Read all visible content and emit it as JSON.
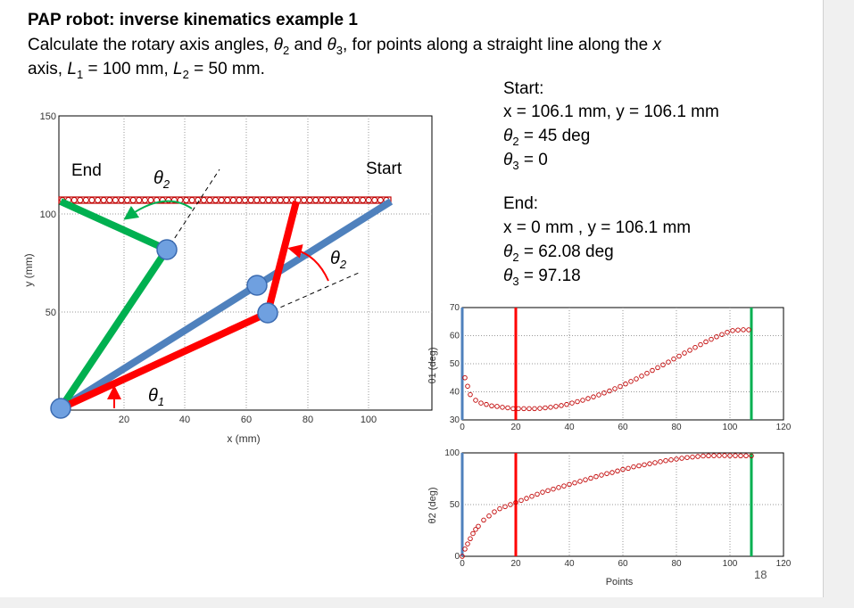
{
  "slide": {
    "title": "PAP robot: inverse kinematics example 1",
    "line1_a": "Calculate the rotary axis angles, ",
    "theta2": "θ",
    "sub2": "2",
    "and": " and ",
    "theta3": "θ",
    "sub3": "3",
    "line1_b": ", for points along a straight line along the ",
    "x_var": "x",
    "line2_a": "axis, ",
    "L": "L",
    "sub1": "1",
    "line2_b": " = 100 mm, ",
    "L2": "L",
    "subL2": "2",
    "line2_c": " = 50 mm.",
    "slide_number": "18"
  },
  "start_info": {
    "heading": "Start:",
    "xy": "x = 106.1 mm, y = 106.1 mm",
    "theta2": "= 45 deg",
    "theta3": "= 0"
  },
  "end_info": {
    "heading": "End:",
    "xy": "x = 0 mm , y = 106.1 mm",
    "theta2": "= 62.08 deg",
    "theta3": "= 97.18"
  },
  "robot_plot": {
    "xlabel": "x (mm)",
    "ylabel": "y (mm)",
    "xticks": [
      "20",
      "40",
      "60",
      "80",
      "100"
    ],
    "yticks": [
      "150",
      "100",
      "50"
    ],
    "label_end": "End",
    "label_start": "Start",
    "label_theta2_top": "θ2",
    "label_theta2_right": "θ2",
    "label_theta1": "θ1",
    "colors": {
      "green": "#00b050",
      "blue": "#4f81bd",
      "red": "#ff0000",
      "marker": "#c00000"
    }
  },
  "chart_data": [
    {
      "type": "scatter",
      "ylabel": "θ1 (deg)",
      "xlabel": "",
      "xlim": [
        0,
        120
      ],
      "ylim": [
        30,
        70
      ],
      "xticks": [
        "0",
        "20",
        "40",
        "60",
        "80",
        "100",
        "120"
      ],
      "yticks": [
        "70",
        "60",
        "50",
        "40",
        "30"
      ],
      "series": [
        {
          "x": [
            1,
            2,
            3,
            5,
            7,
            9,
            11,
            13,
            15,
            17,
            19,
            21,
            23,
            25,
            27,
            29,
            31,
            33,
            35,
            37,
            39,
            41,
            43,
            45,
            47,
            49,
            51,
            53,
            55,
            57,
            59,
            61,
            63,
            65,
            67,
            69,
            71,
            73,
            75,
            77,
            79,
            81,
            83,
            85,
            87,
            89,
            91,
            93,
            95,
            97,
            99,
            101,
            103,
            105,
            107
          ],
          "values": [
            45,
            42,
            39,
            37,
            36,
            35.5,
            35,
            34.8,
            34.5,
            34.3,
            34,
            34,
            34,
            34,
            34,
            34.1,
            34.3,
            34.5,
            34.8,
            35.1,
            35.5,
            36,
            36.5,
            37,
            37.6,
            38.2,
            38.9,
            39.6,
            40.3,
            41.1,
            41.9,
            42.8,
            43.7,
            44.6,
            45.6,
            46.6,
            47.6,
            48.6,
            49.6,
            50.6,
            51.7,
            52.7,
            53.8,
            54.8,
            55.8,
            56.8,
            57.8,
            58.7,
            59.6,
            60.4,
            61.2,
            61.8,
            62,
            62.1,
            62.08
          ]
        }
      ],
      "vlines": [
        {
          "x": 0,
          "color": "#4f81bd"
        },
        {
          "x": 20,
          "color": "#ff0000"
        },
        {
          "x": 108,
          "color": "#00b050"
        }
      ]
    },
    {
      "type": "scatter",
      "ylabel": "θ2 (deg)",
      "xlabel": "Points",
      "xlim": [
        0,
        120
      ],
      "ylim": [
        0,
        100
      ],
      "xticks": [
        "0",
        "20",
        "40",
        "60",
        "80",
        "100",
        "120"
      ],
      "yticks": [
        "100",
        "50",
        "0"
      ],
      "series": [
        {
          "x": [
            0,
            1,
            2,
            3,
            4,
            5,
            6,
            8,
            10,
            12,
            14,
            16,
            18,
            20,
            22,
            24,
            26,
            28,
            30,
            32,
            34,
            36,
            38,
            40,
            42,
            44,
            46,
            48,
            50,
            52,
            54,
            56,
            58,
            60,
            62,
            64,
            66,
            68,
            70,
            72,
            74,
            76,
            78,
            80,
            82,
            84,
            86,
            88,
            90,
            92,
            94,
            96,
            98,
            100,
            102,
            104,
            106,
            108
          ],
          "values": [
            0,
            7,
            12,
            17,
            22,
            26,
            29,
            35,
            39,
            43,
            46,
            48,
            50,
            52,
            54,
            56,
            58,
            60,
            62,
            63.5,
            65,
            66.5,
            68,
            69.5,
            71,
            72.5,
            74,
            75.5,
            77,
            78.5,
            80,
            81,
            82.5,
            84,
            85,
            86.5,
            87.5,
            88.5,
            89.5,
            90.5,
            91.5,
            92.5,
            93.3,
            94,
            94.8,
            95.5,
            96,
            96.5,
            97,
            97.2,
            97.3,
            97.4,
            97.4,
            97.3,
            97.3,
            97.2,
            97.2,
            97.18
          ]
        }
      ],
      "vlines": [
        {
          "x": 0,
          "color": "#4f81bd"
        },
        {
          "x": 20,
          "color": "#ff0000"
        },
        {
          "x": 108,
          "color": "#00b050"
        }
      ]
    }
  ]
}
